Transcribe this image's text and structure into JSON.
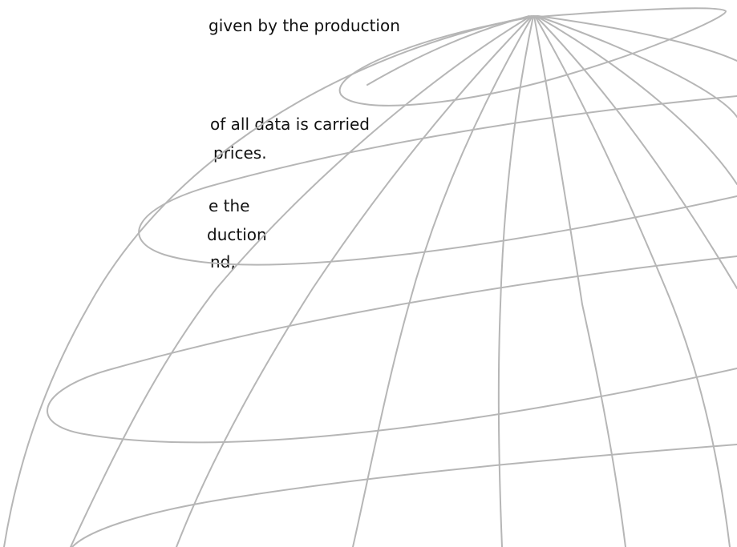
{
  "document": {
    "lines": [
      "given by the production",
      "of all data is carried",
      "prices.",
      "e the",
      "duction",
      "nd,"
    ]
  },
  "illustration": {
    "icon": "globe-wireframe-icon",
    "stroke_color": "#b6b6b6"
  }
}
